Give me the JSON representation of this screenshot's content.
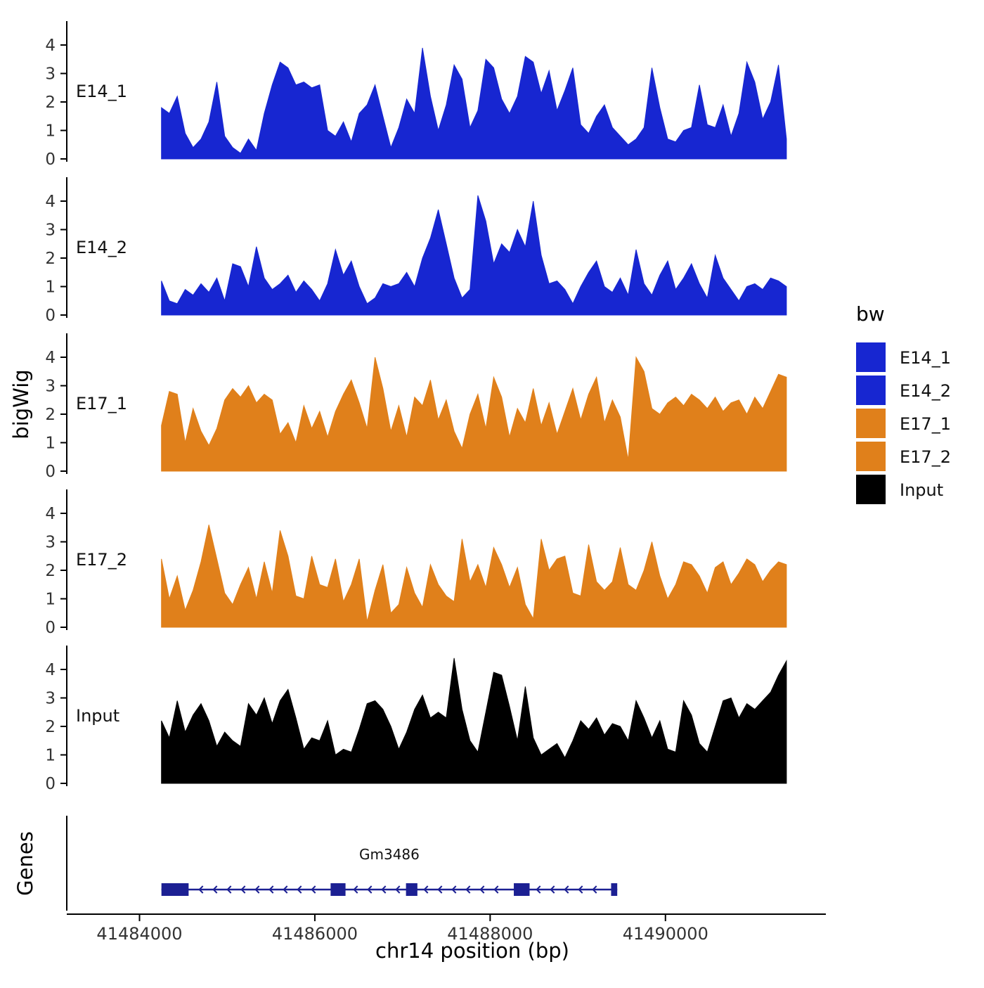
{
  "figure": {
    "ylabel": "bigWig",
    "xlabel": "chr14 position (bp)",
    "genes_label": "Genes",
    "background": "#ffffff"
  },
  "legend": {
    "title": "bw",
    "entries": [
      {
        "label": "E14_1",
        "color": "#1726D1"
      },
      {
        "label": "E14_2",
        "color": "#1726D1"
      },
      {
        "label": "E17_1",
        "color": "#E0801B"
      },
      {
        "label": "E17_2",
        "color": "#E0801B"
      },
      {
        "label": "Input",
        "color": "#000000"
      }
    ]
  },
  "chart_data": {
    "type": "area",
    "title": "",
    "xlabel": "chr14 position (bp)",
    "ylabel": "bigWig",
    "x_axis": {
      "range": [
        41483170,
        41491830
      ],
      "ticks": [
        41484000,
        41486000,
        41488000,
        41490000
      ]
    },
    "y_axis": {
      "range": [
        0,
        4.85
      ],
      "ticks": [
        0,
        1,
        2,
        3,
        4
      ]
    },
    "signal_span": {
      "start": 41484250,
      "end": 41491380
    },
    "tracks": [
      {
        "name": "E14_1",
        "color": "#1726D1",
        "values": [
          1.8,
          1.6,
          2.2,
          0.9,
          0.4,
          0.7,
          1.3,
          2.7,
          0.8,
          0.4,
          0.2,
          0.7,
          0.3,
          1.6,
          2.6,
          3.4,
          3.2,
          2.6,
          2.7,
          2.5,
          2.6,
          1.0,
          0.8,
          1.3,
          0.6,
          1.6,
          1.9,
          2.6,
          1.5,
          0.4,
          1.1,
          2.1,
          1.6,
          3.9,
          2.2,
          1.0,
          1.9,
          3.3,
          2.8,
          1.1,
          1.7,
          3.5,
          3.2,
          2.1,
          1.6,
          2.2,
          3.6,
          3.4,
          2.3,
          3.1,
          1.7,
          2.4,
          3.2,
          1.2,
          0.9,
          1.5,
          1.9,
          1.1,
          0.8,
          0.5,
          0.7,
          1.1,
          3.2,
          1.8,
          0.7,
          0.6,
          1.0,
          1.1,
          2.6,
          1.2,
          1.1,
          1.9,
          0.8,
          1.6,
          3.4,
          2.7,
          1.4,
          2.0,
          3.3,
          0.7
        ]
      },
      {
        "name": "E14_2",
        "color": "#1726D1",
        "values": [
          1.2,
          0.5,
          0.4,
          0.9,
          0.7,
          1.1,
          0.8,
          1.3,
          0.5,
          1.8,
          1.7,
          1.0,
          2.4,
          1.3,
          0.9,
          1.1,
          1.4,
          0.8,
          1.2,
          0.9,
          0.5,
          1.1,
          2.3,
          1.4,
          1.9,
          1.0,
          0.4,
          0.6,
          1.1,
          1.0,
          1.1,
          1.5,
          1.0,
          2.0,
          2.7,
          3.7,
          2.5,
          1.3,
          0.6,
          0.9,
          4.2,
          3.3,
          1.8,
          2.5,
          2.2,
          3.0,
          2.4,
          4.0,
          2.1,
          1.1,
          1.2,
          0.9,
          0.4,
          1.0,
          1.5,
          1.9,
          1.0,
          0.8,
          1.3,
          0.7,
          2.3,
          1.1,
          0.7,
          1.4,
          1.9,
          0.9,
          1.3,
          1.8,
          1.1,
          0.6,
          2.1,
          1.3,
          0.9,
          0.5,
          1.0,
          1.1,
          0.9,
          1.3,
          1.2,
          1.0
        ]
      },
      {
        "name": "E17_1",
        "color": "#E0801B",
        "values": [
          1.6,
          2.8,
          2.7,
          1.0,
          2.2,
          1.4,
          0.9,
          1.5,
          2.5,
          2.9,
          2.6,
          3.0,
          2.4,
          2.7,
          2.5,
          1.3,
          1.7,
          1.0,
          2.3,
          1.5,
          2.1,
          1.2,
          2.1,
          2.7,
          3.2,
          2.4,
          1.5,
          4.0,
          2.9,
          1.4,
          2.3,
          1.2,
          2.6,
          2.3,
          3.2,
          1.8,
          2.5,
          1.4,
          0.8,
          2.0,
          2.7,
          1.5,
          3.3,
          2.6,
          1.2,
          2.2,
          1.7,
          2.9,
          1.6,
          2.4,
          1.3,
          2.1,
          2.9,
          1.8,
          2.7,
          3.3,
          1.7,
          2.5,
          1.9,
          0.4,
          4.0,
          3.5,
          2.2,
          2.0,
          2.4,
          2.6,
          2.3,
          2.7,
          2.5,
          2.2,
          2.6,
          2.1,
          2.4,
          2.5,
          2.0,
          2.6,
          2.2,
          2.8,
          3.4,
          3.3
        ]
      },
      {
        "name": "E17_2",
        "color": "#E0801B",
        "values": [
          2.4,
          1.0,
          1.8,
          0.6,
          1.3,
          2.3,
          3.6,
          2.4,
          1.2,
          0.8,
          1.5,
          2.1,
          1.0,
          2.3,
          1.2,
          3.4,
          2.5,
          1.1,
          1.0,
          2.5,
          1.5,
          1.4,
          2.4,
          0.9,
          1.5,
          2.4,
          0.2,
          1.3,
          2.2,
          0.5,
          0.8,
          2.1,
          1.2,
          0.7,
          2.2,
          1.5,
          1.1,
          0.9,
          3.1,
          1.6,
          2.2,
          1.4,
          2.8,
          2.2,
          1.4,
          2.1,
          0.8,
          0.3,
          3.1,
          2.0,
          2.4,
          2.5,
          1.2,
          1.1,
          2.9,
          1.6,
          1.3,
          1.6,
          2.8,
          1.5,
          1.3,
          2.0,
          3.0,
          1.8,
          1.0,
          1.5,
          2.3,
          2.2,
          1.8,
          1.2,
          2.1,
          2.3,
          1.5,
          1.9,
          2.4,
          2.2,
          1.6,
          2.0,
          2.3,
          2.2
        ]
      },
      {
        "name": "Input",
        "color": "#000000",
        "values": [
          2.2,
          1.6,
          2.9,
          1.8,
          2.4,
          2.8,
          2.2,
          1.3,
          1.8,
          1.5,
          1.3,
          2.8,
          2.4,
          3.0,
          2.1,
          2.9,
          3.3,
          2.3,
          1.2,
          1.6,
          1.5,
          2.2,
          1.0,
          1.2,
          1.1,
          1.9,
          2.8,
          2.9,
          2.6,
          2.0,
          1.2,
          1.8,
          2.6,
          3.1,
          2.3,
          2.5,
          2.3,
          4.4,
          2.6,
          1.5,
          1.1,
          2.5,
          3.9,
          3.8,
          2.7,
          1.5,
          3.4,
          1.6,
          1.0,
          1.2,
          1.4,
          0.9,
          1.5,
          2.2,
          1.9,
          2.3,
          1.7,
          2.1,
          2.0,
          1.5,
          2.9,
          2.3,
          1.6,
          2.2,
          1.2,
          1.1,
          2.9,
          2.4,
          1.4,
          1.1,
          2.0,
          2.9,
          3.0,
          2.3,
          2.8,
          2.6,
          2.9,
          3.2,
          3.8,
          4.3
        ]
      }
    ],
    "gene_track": {
      "gene": "Gm3486",
      "strand": "-",
      "start": 41484250,
      "end": 41489450,
      "exons": [
        [
          41484250,
          41484560
        ],
        [
          41486180,
          41486350
        ],
        [
          41487040,
          41487170
        ],
        [
          41488270,
          41488450
        ],
        [
          41489380,
          41489450
        ]
      ],
      "color": "#1C2093"
    }
  }
}
